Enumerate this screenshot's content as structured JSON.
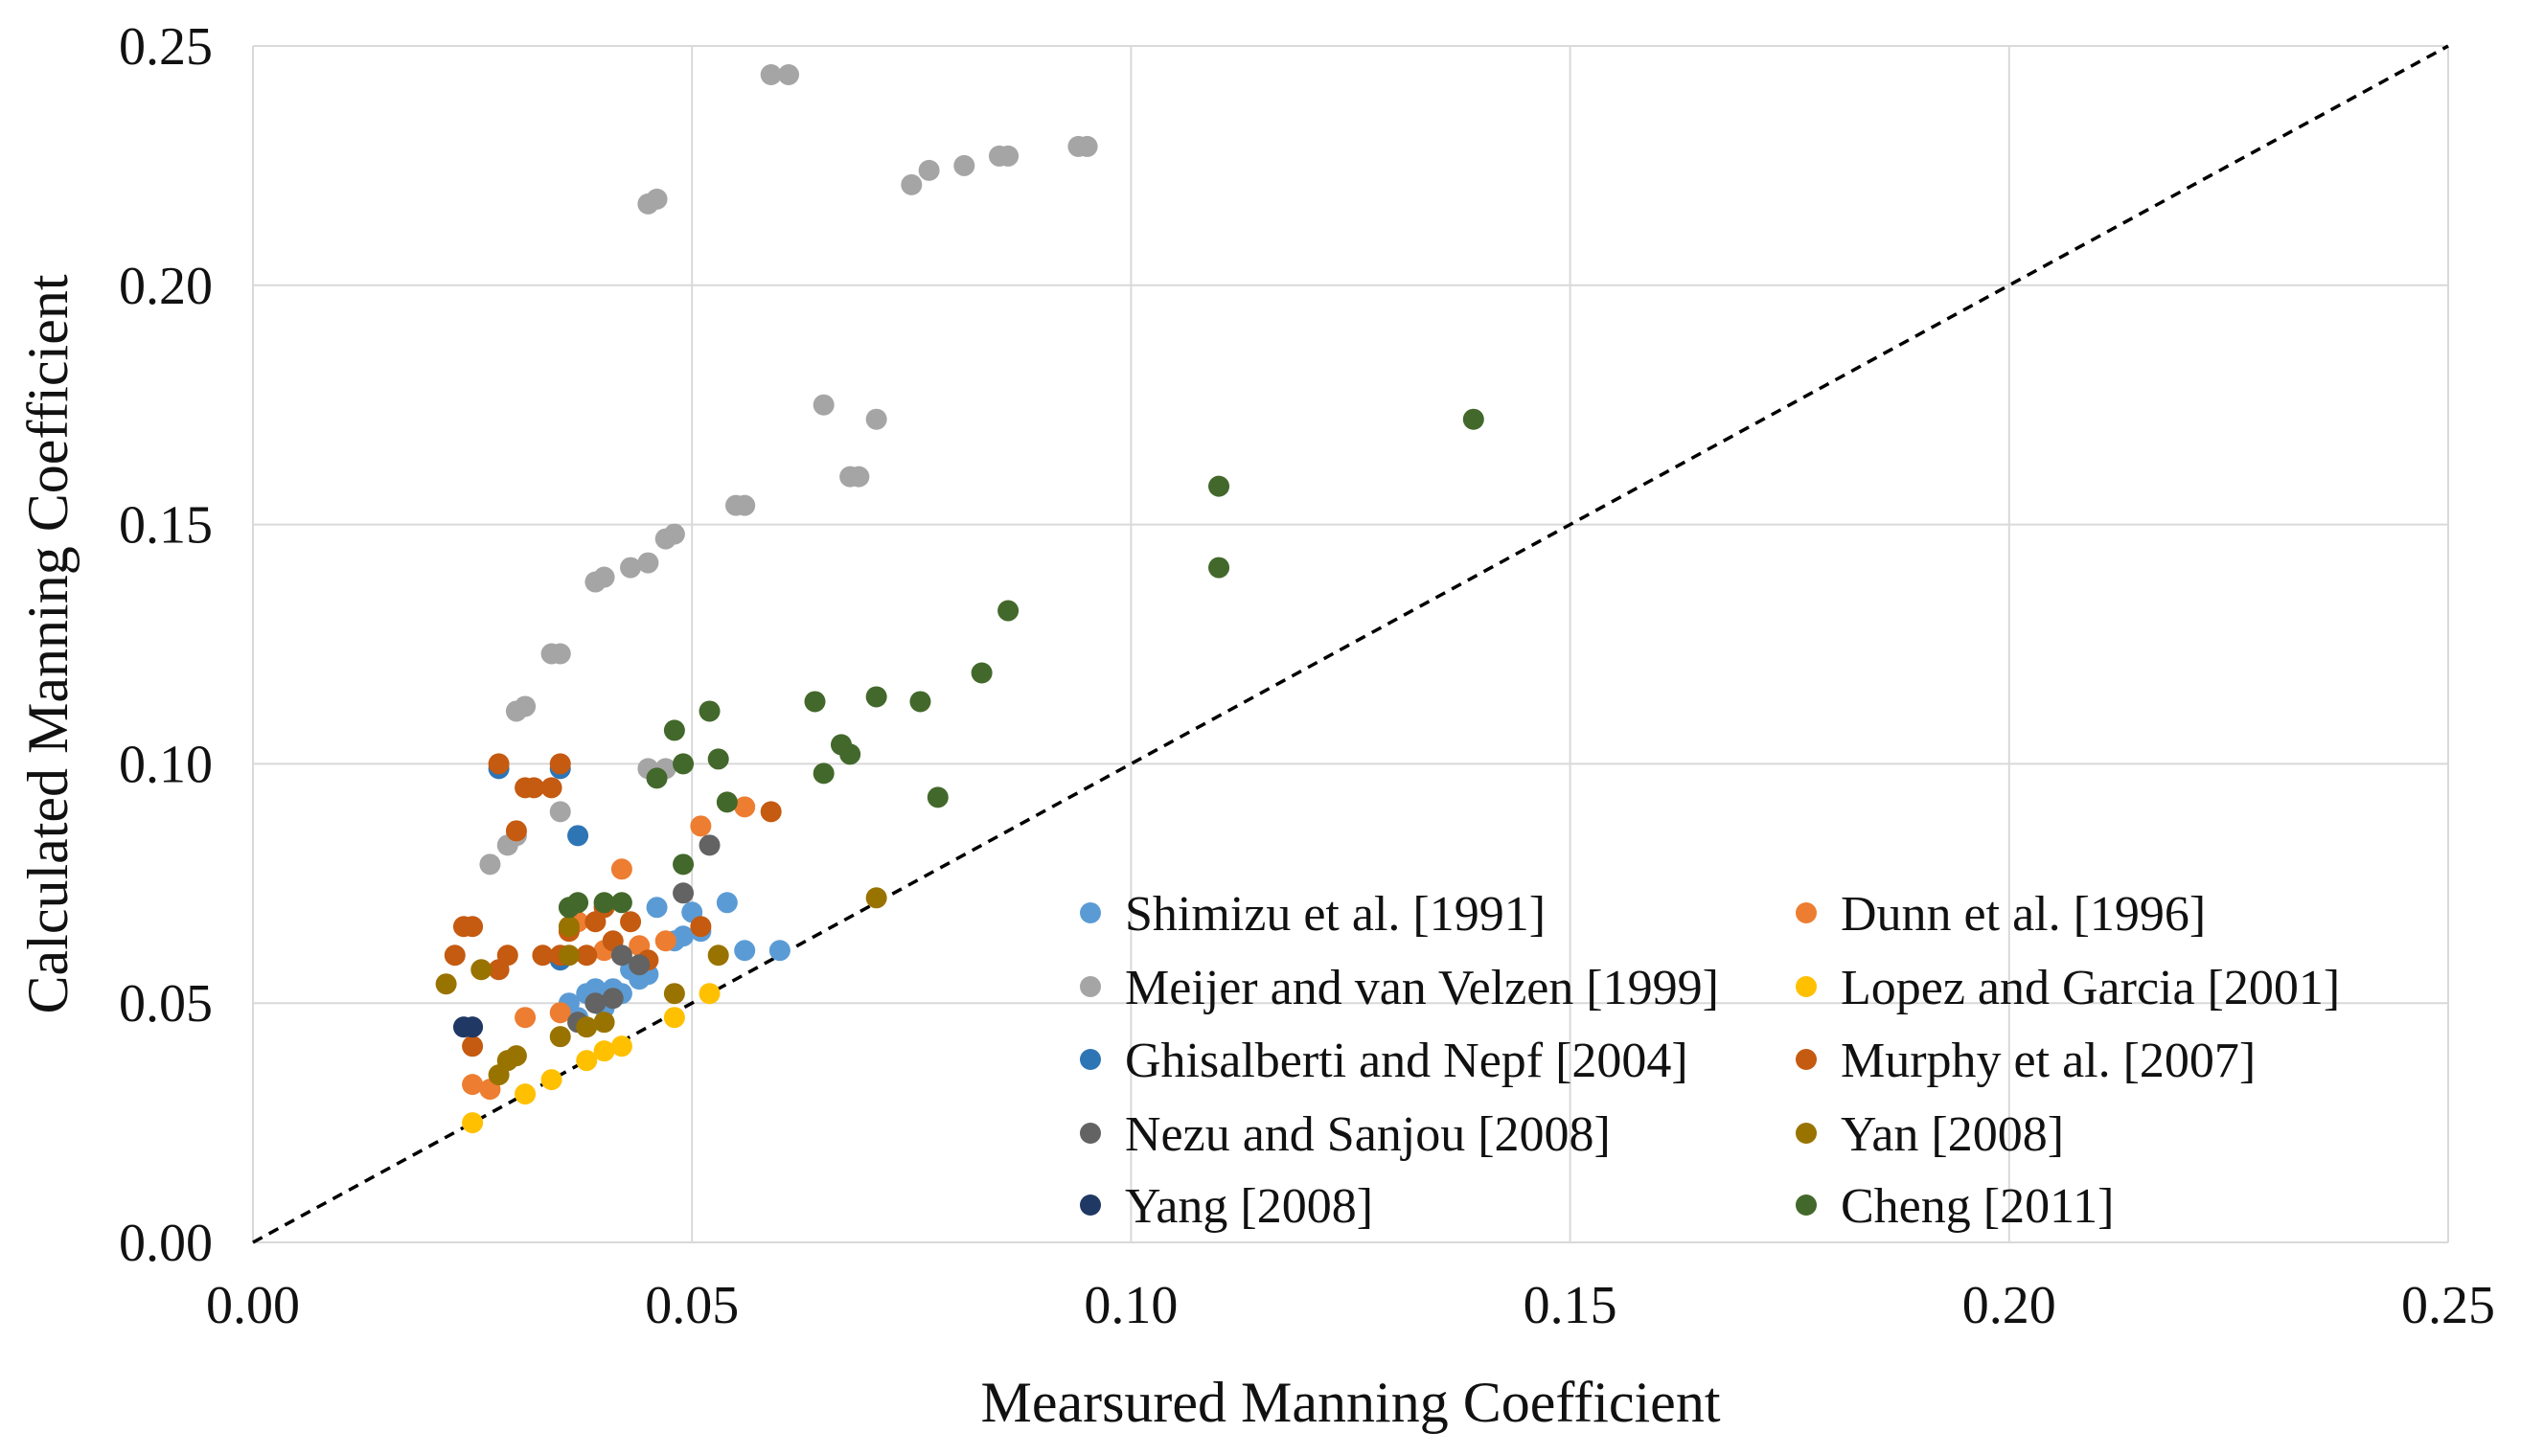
{
  "chart_data": {
    "type": "scatter",
    "title": "",
    "xlabel": "Mearsured Manning Coefficient",
    "ylabel": "Calculated Manning Coefficient",
    "xlim": [
      0,
      0.25
    ],
    "ylim": [
      0,
      0.25
    ],
    "xticks": [
      "0.00",
      "0.05",
      "0.10",
      "0.15",
      "0.20",
      "0.25"
    ],
    "yticks": [
      "0.00",
      "0.05",
      "0.10",
      "0.15",
      "0.20",
      "0.25"
    ],
    "grid": true,
    "legend_position": "bottom-right",
    "reference_line": {
      "style": "dashed",
      "color": "#000000",
      "points": [
        [
          0,
          0
        ],
        [
          0.25,
          0.25
        ]
      ]
    },
    "series": [
      {
        "name": "Shimizu et al. [1991]",
        "color": "#5B9BD5",
        "points": [
          [
            0.036,
            0.05
          ],
          [
            0.037,
            0.047
          ],
          [
            0.038,
            0.052
          ],
          [
            0.039,
            0.053
          ],
          [
            0.04,
            0.049
          ],
          [
            0.041,
            0.053
          ],
          [
            0.042,
            0.052
          ],
          [
            0.043,
            0.057
          ],
          [
            0.044,
            0.055
          ],
          [
            0.045,
            0.056
          ],
          [
            0.046,
            0.07
          ],
          [
            0.048,
            0.063
          ],
          [
            0.049,
            0.064
          ],
          [
            0.05,
            0.069
          ],
          [
            0.051,
            0.065
          ],
          [
            0.054,
            0.071
          ],
          [
            0.056,
            0.061
          ],
          [
            0.06,
            0.061
          ]
        ]
      },
      {
        "name": "Dunn et al. [1996]",
        "color": "#ED7D31",
        "points": [
          [
            0.025,
            0.033
          ],
          [
            0.027,
            0.032
          ],
          [
            0.031,
            0.047
          ],
          [
            0.035,
            0.048
          ],
          [
            0.037,
            0.067
          ],
          [
            0.04,
            0.061
          ],
          [
            0.042,
            0.078
          ],
          [
            0.044,
            0.062
          ],
          [
            0.047,
            0.063
          ],
          [
            0.051,
            0.087
          ],
          [
            0.056,
            0.091
          ]
        ]
      },
      {
        "name": "Meijer and van Velzen [1999]",
        "color": "#A5A5A5",
        "points": [
          [
            0.027,
            0.079
          ],
          [
            0.029,
            0.083
          ],
          [
            0.03,
            0.085
          ],
          [
            0.03,
            0.111
          ],
          [
            0.031,
            0.112
          ],
          [
            0.034,
            0.123
          ],
          [
            0.035,
            0.123
          ],
          [
            0.035,
            0.09
          ],
          [
            0.039,
            0.138
          ],
          [
            0.04,
            0.139
          ],
          [
            0.043,
            0.141
          ],
          [
            0.045,
            0.142
          ],
          [
            0.045,
            0.217
          ],
          [
            0.046,
            0.218
          ],
          [
            0.047,
            0.147
          ],
          [
            0.048,
            0.148
          ],
          [
            0.045,
            0.099
          ],
          [
            0.047,
            0.099
          ],
          [
            0.055,
            0.154
          ],
          [
            0.056,
            0.154
          ],
          [
            0.059,
            0.244
          ],
          [
            0.061,
            0.244
          ],
          [
            0.065,
            0.175
          ],
          [
            0.068,
            0.16
          ],
          [
            0.069,
            0.16
          ],
          [
            0.071,
            0.172
          ],
          [
            0.075,
            0.221
          ],
          [
            0.077,
            0.224
          ],
          [
            0.081,
            0.225
          ],
          [
            0.085,
            0.227
          ],
          [
            0.086,
            0.227
          ],
          [
            0.094,
            0.229
          ],
          [
            0.095,
            0.229
          ]
        ]
      },
      {
        "name": "Lopez and Garcia [2001]",
        "color": "#FFC000",
        "points": [
          [
            0.025,
            0.025
          ],
          [
            0.031,
            0.031
          ],
          [
            0.034,
            0.034
          ],
          [
            0.038,
            0.038
          ],
          [
            0.04,
            0.04
          ],
          [
            0.042,
            0.041
          ],
          [
            0.048,
            0.047
          ],
          [
            0.052,
            0.052
          ]
        ]
      },
      {
        "name": "Ghisalberti and Nepf [2004]",
        "color": "#2E75B6",
        "points": [
          [
            0.028,
            0.099
          ],
          [
            0.035,
            0.099
          ],
          [
            0.035,
            0.059
          ],
          [
            0.037,
            0.085
          ]
        ]
      },
      {
        "name": "Murphy et al. [2007]",
        "color": "#C55A11",
        "points": [
          [
            0.023,
            0.06
          ],
          [
            0.024,
            0.066
          ],
          [
            0.025,
            0.066
          ],
          [
            0.025,
            0.041
          ],
          [
            0.028,
            0.1
          ],
          [
            0.028,
            0.057
          ],
          [
            0.029,
            0.06
          ],
          [
            0.03,
            0.086
          ],
          [
            0.031,
            0.095
          ],
          [
            0.032,
            0.095
          ],
          [
            0.033,
            0.06
          ],
          [
            0.034,
            0.095
          ],
          [
            0.035,
            0.1
          ],
          [
            0.035,
            0.06
          ],
          [
            0.036,
            0.065
          ],
          [
            0.038,
            0.06
          ],
          [
            0.039,
            0.067
          ],
          [
            0.04,
            0.07
          ],
          [
            0.041,
            0.063
          ],
          [
            0.043,
            0.067
          ],
          [
            0.045,
            0.059
          ],
          [
            0.051,
            0.066
          ],
          [
            0.059,
            0.09
          ]
        ]
      },
      {
        "name": "Nezu and Sanjou [2008]",
        "color": "#636363",
        "points": [
          [
            0.037,
            0.046
          ],
          [
            0.039,
            0.05
          ],
          [
            0.041,
            0.051
          ],
          [
            0.042,
            0.06
          ],
          [
            0.044,
            0.058
          ],
          [
            0.049,
            0.073
          ],
          [
            0.052,
            0.083
          ]
        ]
      },
      {
        "name": "Yan [2008]",
        "color": "#997300",
        "points": [
          [
            0.022,
            0.054
          ],
          [
            0.026,
            0.057
          ],
          [
            0.028,
            0.035
          ],
          [
            0.029,
            0.038
          ],
          [
            0.03,
            0.039
          ],
          [
            0.035,
            0.043
          ],
          [
            0.036,
            0.06
          ],
          [
            0.036,
            0.066
          ],
          [
            0.038,
            0.045
          ],
          [
            0.04,
            0.046
          ],
          [
            0.048,
            0.052
          ],
          [
            0.053,
            0.06
          ],
          [
            0.071,
            0.072
          ]
        ]
      },
      {
        "name": "Yang [2008]",
        "color": "#203864",
        "points": [
          [
            0.024,
            0.045
          ],
          [
            0.025,
            0.045
          ]
        ]
      },
      {
        "name": "Cheng [2011]",
        "color": "#43682B",
        "points": [
          [
            0.036,
            0.07
          ],
          [
            0.037,
            0.071
          ],
          [
            0.04,
            0.071
          ],
          [
            0.042,
            0.071
          ],
          [
            0.046,
            0.097
          ],
          [
            0.048,
            0.107
          ],
          [
            0.049,
            0.079
          ],
          [
            0.049,
            0.1
          ],
          [
            0.052,
            0.111
          ],
          [
            0.053,
            0.101
          ],
          [
            0.054,
            0.092
          ],
          [
            0.064,
            0.113
          ],
          [
            0.065,
            0.098
          ],
          [
            0.067,
            0.104
          ],
          [
            0.068,
            0.102
          ],
          [
            0.071,
            0.114
          ],
          [
            0.076,
            0.113
          ],
          [
            0.078,
            0.093
          ],
          [
            0.083,
            0.119
          ],
          [
            0.086,
            0.132
          ],
          [
            0.11,
            0.158
          ],
          [
            0.11,
            0.141
          ],
          [
            0.139,
            0.172
          ]
        ]
      }
    ]
  }
}
